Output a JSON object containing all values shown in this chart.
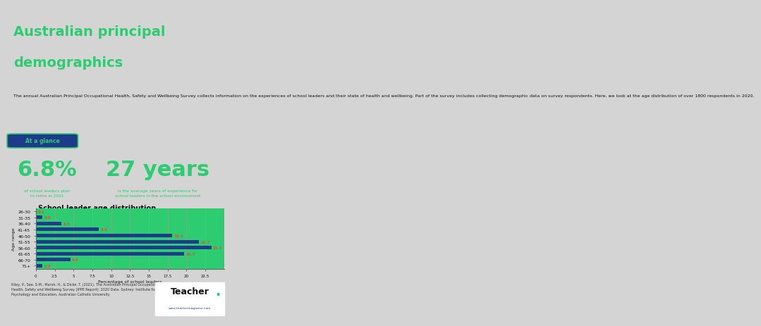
{
  "title_line1": "Australian principal",
  "title_line2": "demographics",
  "header_bg": "#1e3a8a",
  "title_color": "#2ecc71",
  "body_bg": "#d4d4d4",
  "glance_bg": "#1e3a8a",
  "chart_bg": "#2ecc71",
  "footer_bg": "#e0e0e0",
  "intro_text": "The annual Australian Principal Occupational Health, Safety and Wellbeing Survey collects information on the experiences of school leaders and their state of health and wellbeing. Part of the survey includes collecting demographic data on survey respondents. Here, we look at the age distribution of over 1800 respondents in 2020.",
  "glance_label": "At a glance",
  "stat1_value": "6.8%",
  "stat1_desc": "of school leaders plan\nto retire in 2021",
  "stat2_value": "27 years",
  "stat2_desc": "is the average years of experience for\nschool leaders in the school environment",
  "chart_title": "School leader age distribution",
  "categories": [
    "26-30",
    "31-35",
    "36-40",
    "41-45",
    "46-50",
    "51-55",
    "56-60",
    "61-65",
    "66-70",
    "71+"
  ],
  "values": [
    0.1,
    0.9,
    3.4,
    8.4,
    18.1,
    21.7,
    23.3,
    19.7,
    4.6,
    0.9
  ],
  "bar_color": "#1e3a8a",
  "value_color": "#e74c3c",
  "xlabel": "Percentage of school leaders",
  "ylabel": "Age range",
  "xlim": [
    0,
    25
  ],
  "xticks": [
    0,
    2.5,
    5,
    7.5,
    10,
    12.5,
    15,
    17.5,
    20,
    22.5
  ],
  "footer_text": "Riley, P., See, S-M., Marsh, H., & Dicke, T. (2021). The Australian Principal Occupational\nHealth, Safety and Wellbeing Survey (IPPE Report): 2020 Data. Sydney: Institute for Positive\nPsychology and Education, Australian Catholic University",
  "logo_text": "Teacher",
  "logo_dot_color": "#2ecc71",
  "logo_url": "www.teachermagazine.com",
  "grid_color": "#88aa88"
}
